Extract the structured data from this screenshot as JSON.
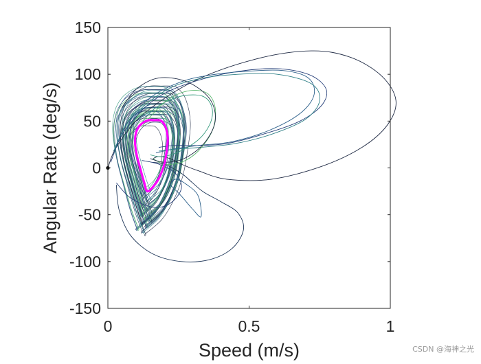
{
  "chart_data": {
    "type": "line",
    "title": "",
    "xlabel": "Speed (m/s)",
    "ylabel": "Angular Rate (deg/s)",
    "xlim": [
      0,
      1
    ],
    "ylim": [
      -150,
      150
    ],
    "xticks": [
      0,
      0.5,
      1
    ],
    "xtick_labels": [
      "0",
      "0.5",
      "1"
    ],
    "yticks": [
      150,
      100,
      50,
      0,
      -50,
      -100,
      -150
    ],
    "ytick_labels": [
      "150",
      "100",
      "50",
      "0",
      "-50",
      "-100",
      "-150"
    ],
    "grid": false,
    "legend": "none",
    "colors": {
      "limit_cycle": "#ff00ff",
      "trajectories": [
        "#1f2a44",
        "#27407a",
        "#2b5f8a",
        "#2e7f86",
        "#3a9c80",
        "#5cb870",
        "#1d3557"
      ],
      "axes": "#262626"
    },
    "series": [
      {
        "style": "limit-cycle",
        "x": [
          0.14,
          0.128,
          0.114,
          0.102,
          0.096,
          0.1,
          0.112,
          0.128,
          0.145,
          0.162,
          0.178,
          0.19,
          0.204,
          0.212,
          0.208,
          0.2,
          0.184,
          0.166,
          0.14
        ],
        "y": [
          -25,
          -15,
          0,
          14,
          28,
          38,
          45,
          49,
          51,
          51,
          51,
          50,
          44,
          32,
          18,
          4,
          -9,
          -18,
          -25
        ]
      },
      {
        "style": "trajectory",
        "x": [
          0,
          0.03,
          0.12,
          0.3,
          0.52,
          0.72,
          0.86,
          0.97,
          1.02,
          0.99,
          0.9,
          0.76,
          0.58,
          0.42,
          0.32,
          0.26,
          0.22,
          0.18,
          0.16
        ],
        "y": [
          0,
          22,
          56,
          92,
          116,
          125,
          118,
          98,
          72,
          46,
          22,
          2,
          -12,
          -12,
          -3,
          4,
          10,
          12,
          10
        ]
      },
      {
        "style": "trajectory",
        "x": [
          0.01,
          0.06,
          0.18,
          0.36,
          0.56,
          0.7,
          0.77,
          0.76,
          0.68,
          0.55,
          0.42,
          0.32,
          0.24,
          0.18
        ],
        "y": [
          6,
          40,
          76,
          97,
          106,
          101,
          86,
          68,
          50,
          36,
          26,
          24,
          24,
          22
        ]
      },
      {
        "style": "trajectory",
        "x": [
          0.02,
          0.06,
          0.15,
          0.26,
          0.36,
          0.48,
          0.62,
          0.71,
          0.73,
          0.68,
          0.57,
          0.44,
          0.32,
          0.23,
          0.17
        ],
        "y": [
          14,
          44,
          75,
          92,
          99,
          103,
          104,
          96,
          78,
          58,
          40,
          28,
          24,
          20,
          16
        ]
      },
      {
        "style": "trajectory",
        "x": [
          0.02,
          0.08,
          0.2,
          0.32,
          0.46,
          0.6,
          0.72,
          0.75,
          0.7,
          0.58,
          0.45,
          0.33,
          0.24,
          0.18
        ],
        "y": [
          18,
          52,
          82,
          95,
          100,
          100,
          90,
          72,
          52,
          36,
          26,
          22,
          20,
          18
        ]
      },
      {
        "style": "trajectory",
        "x": [
          0.1,
          0.16,
          0.24,
          0.31,
          0.35,
          0.37,
          0.36,
          0.32,
          0.25,
          0.19,
          0.15
        ],
        "y": [
          40,
          62,
          75,
          78,
          74,
          62,
          46,
          30,
          17,
          12,
          14
        ]
      },
      {
        "style": "trajectory",
        "x": [
          0.12,
          0.2,
          0.28,
          0.35,
          0.38,
          0.37,
          0.32,
          0.26,
          0.2,
          0.16
        ],
        "y": [
          44,
          70,
          82,
          80,
          64,
          40,
          18,
          6,
          4,
          10
        ]
      },
      {
        "style": "trajectory",
        "x": [
          0.03,
          0.04,
          0.08,
          0.16,
          0.26,
          0.36,
          0.44,
          0.48,
          0.46,
          0.4,
          0.34,
          0.3,
          0.27,
          0.24,
          0.2,
          0.16
        ],
        "y": [
          -18,
          -45,
          -72,
          -92,
          -100,
          -98,
          -86,
          -66,
          -48,
          -36,
          -26,
          -16,
          -8,
          -2,
          4,
          6
        ]
      },
      {
        "style": "trajectory",
        "x": [
          0.05,
          0.1,
          0.18,
          0.28,
          0.36,
          0.38,
          0.34,
          0.27,
          0.2,
          0.15
        ],
        "y": [
          64,
          84,
          96,
          92,
          74,
          50,
          26,
          10,
          6,
          10
        ]
      },
      {
        "style": "trajectory",
        "x": [
          0.03,
          0.08,
          0.16,
          0.22,
          0.26,
          0.24,
          0.18,
          0.12
        ],
        "y": [
          -16,
          -32,
          -42,
          -38,
          -22,
          -6,
          4,
          8
        ]
      },
      {
        "style": "trajectory",
        "x": [
          0.22,
          0.26,
          0.3,
          0.33,
          0.32,
          0.28,
          0.24,
          0.22
        ],
        "y": [
          -18,
          -30,
          -44,
          -52,
          -30,
          -18,
          -12,
          -18
        ]
      }
    ]
  }
}
